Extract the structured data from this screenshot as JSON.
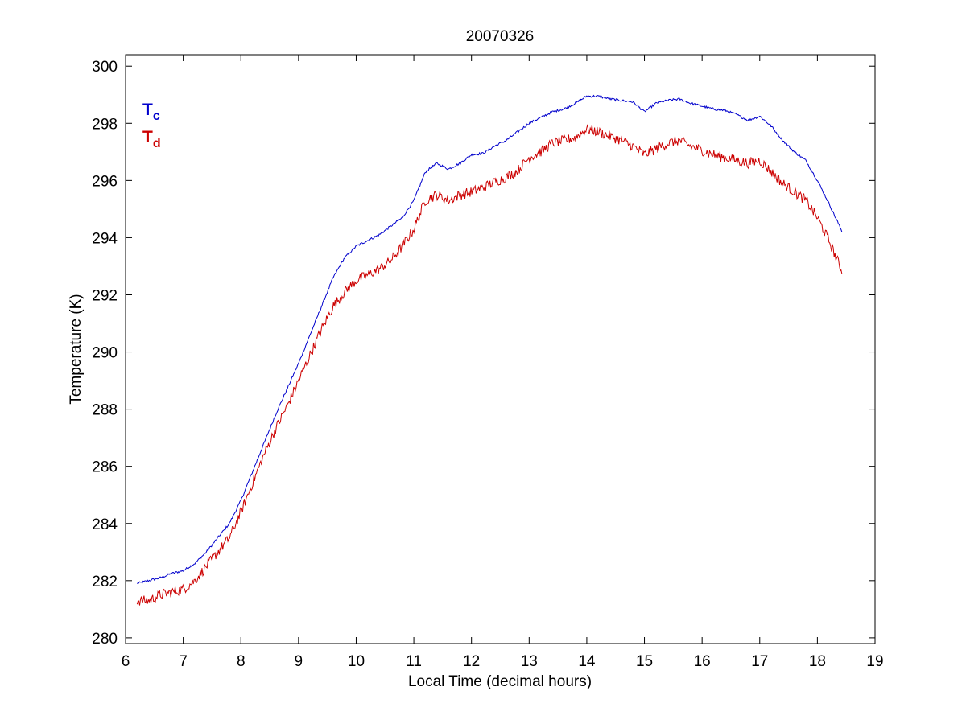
{
  "chart_data": {
    "type": "line",
    "title": "20070326",
    "xlabel": "Local Time (decimal hours)",
    "ylabel": "Temperature (K)",
    "xlim": [
      6,
      19
    ],
    "ylim": [
      279.8,
      300.4
    ],
    "xticks": [
      6,
      7,
      8,
      9,
      10,
      11,
      12,
      13,
      14,
      15,
      16,
      17,
      18,
      19
    ],
    "yticks": [
      280,
      282,
      284,
      286,
      288,
      290,
      292,
      294,
      296,
      298,
      300
    ],
    "grid": false,
    "legend": {
      "placement": "top-left",
      "entries": [
        {
          "main": "T",
          "sub": "c",
          "color": "#0000cc"
        },
        {
          "main": "T",
          "sub": "d",
          "color": "#cc0000"
        }
      ]
    },
    "series": [
      {
        "color": "#0000cc",
        "noise": 0.04,
        "x": [
          6.2,
          6.4,
          6.6,
          6.8,
          7.0,
          7.2,
          7.4,
          7.6,
          7.8,
          8.0,
          8.2,
          8.4,
          8.6,
          8.8,
          9.0,
          9.2,
          9.4,
          9.6,
          9.8,
          10.0,
          10.2,
          10.4,
          10.6,
          10.8,
          11.0,
          11.2,
          11.4,
          11.6,
          11.8,
          12.0,
          12.2,
          12.4,
          12.6,
          12.8,
          13.0,
          13.2,
          13.4,
          13.6,
          13.8,
          14.0,
          14.2,
          14.4,
          14.6,
          14.8,
          15.0,
          15.2,
          15.4,
          15.6,
          15.8,
          16.0,
          16.2,
          16.4,
          16.6,
          16.8,
          17.0,
          17.2,
          17.4,
          17.6,
          17.8,
          18.0,
          18.2,
          18.43
        ],
        "y": [
          281.9,
          282.0,
          282.1,
          282.25,
          282.35,
          282.6,
          283.0,
          283.5,
          284.0,
          284.8,
          285.8,
          286.8,
          287.8,
          288.7,
          289.6,
          290.6,
          291.6,
          292.6,
          293.3,
          293.7,
          293.9,
          294.1,
          294.4,
          294.7,
          295.3,
          296.3,
          296.6,
          296.4,
          296.6,
          296.9,
          296.95,
          297.2,
          297.4,
          297.7,
          298.0,
          298.2,
          298.4,
          298.5,
          298.7,
          298.95,
          298.95,
          298.85,
          298.8,
          298.75,
          298.4,
          298.7,
          298.8,
          298.85,
          298.7,
          298.6,
          298.5,
          298.45,
          298.3,
          298.1,
          298.25,
          297.9,
          297.4,
          297.0,
          296.7,
          296.0,
          295.2,
          294.2
        ]
      },
      {
        "color": "#cc0000",
        "noise": 0.18,
        "x": [
          6.2,
          6.4,
          6.6,
          6.8,
          7.0,
          7.2,
          7.4,
          7.6,
          7.8,
          8.0,
          8.2,
          8.4,
          8.6,
          8.8,
          9.0,
          9.2,
          9.4,
          9.6,
          9.8,
          10.0,
          10.2,
          10.4,
          10.6,
          10.8,
          11.0,
          11.2,
          11.4,
          11.6,
          11.8,
          12.0,
          12.2,
          12.4,
          12.6,
          12.8,
          13.0,
          13.2,
          13.4,
          13.6,
          13.8,
          14.0,
          14.2,
          14.4,
          14.6,
          14.8,
          15.0,
          15.2,
          15.4,
          15.6,
          15.8,
          16.0,
          16.2,
          16.4,
          16.6,
          16.8,
          17.0,
          17.2,
          17.4,
          17.6,
          17.8,
          18.0,
          18.2,
          18.43
        ],
        "y": [
          281.3,
          281.3,
          281.5,
          281.6,
          281.7,
          282.0,
          282.5,
          283.0,
          283.5,
          284.4,
          285.4,
          286.4,
          287.3,
          288.1,
          289.0,
          289.9,
          290.8,
          291.6,
          292.1,
          292.5,
          292.7,
          292.9,
          293.2,
          293.7,
          294.3,
          295.3,
          295.5,
          295.3,
          295.5,
          295.6,
          295.75,
          295.95,
          296.1,
          296.35,
          296.8,
          297.0,
          297.3,
          297.4,
          297.5,
          297.8,
          297.7,
          297.55,
          297.4,
          297.2,
          296.9,
          297.1,
          297.3,
          297.4,
          297.2,
          297.05,
          296.9,
          296.8,
          296.7,
          296.6,
          296.7,
          296.3,
          295.9,
          295.6,
          295.3,
          294.7,
          293.9,
          292.8
        ]
      }
    ]
  }
}
